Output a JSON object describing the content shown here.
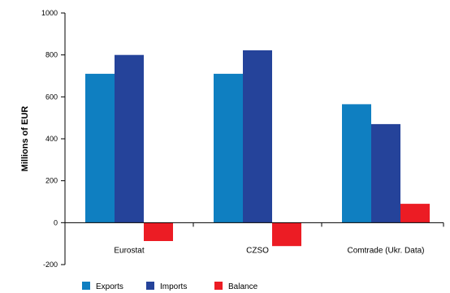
{
  "chart_data": {
    "type": "bar",
    "title": "",
    "xlabel": "",
    "ylabel": "Millions of EUR",
    "ylim": [
      -200,
      1000
    ],
    "yticks": [
      -200,
      0,
      200,
      400,
      600,
      800,
      1000
    ],
    "grid": false,
    "legend_position": "bottom-left",
    "categories": [
      "Eurostat",
      "CZSO",
      "Comtrade (Ukr. Data)"
    ],
    "series": [
      {
        "name": "Exports",
        "color": "#0f7fc1",
        "values": [
          710,
          710,
          565
        ]
      },
      {
        "name": "Imports",
        "color": "#25439a",
        "values": [
          800,
          822,
          470
        ]
      },
      {
        "name": "Balance",
        "color": "#ec1c24",
        "values": [
          -88,
          -112,
          90
        ]
      }
    ]
  }
}
